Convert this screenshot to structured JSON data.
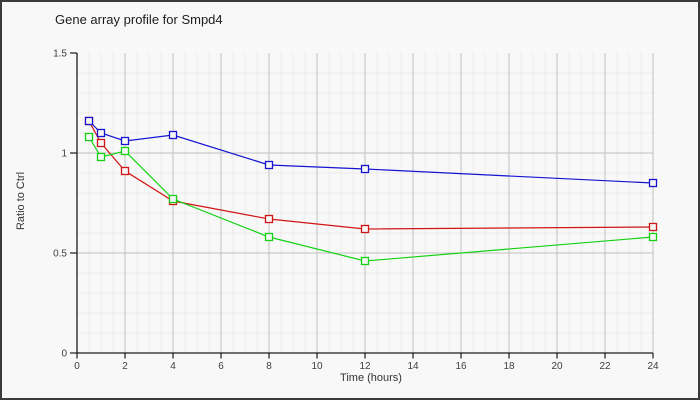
{
  "window": {
    "background": "#f8f8f8",
    "border_color": "#3b3b3b"
  },
  "chart_data": {
    "type": "line",
    "title": "Gene array profile for Smpd4",
    "xlabel": "Time (hours)",
    "ylabel": "Ratio to Ctrl",
    "x": [
      0.5,
      1,
      2,
      4,
      8,
      12,
      24
    ],
    "series": [
      {
        "name": "red",
        "color": "#d21414",
        "values": [
          1.16,
          1.05,
          0.91,
          0.76,
          0.67,
          0.62,
          0.63
        ]
      },
      {
        "name": "green",
        "color": "#14d214",
        "values": [
          1.08,
          0.98,
          1.01,
          0.77,
          0.58,
          0.46,
          0.58
        ]
      },
      {
        "name": "blue",
        "color": "#1414d2",
        "values": [
          1.16,
          1.1,
          1.06,
          1.09,
          0.94,
          0.92,
          0.85
        ]
      }
    ],
    "xlim": [
      0,
      24
    ],
    "ylim": [
      0,
      1.5
    ],
    "x_ticks": [
      0,
      2,
      4,
      6,
      8,
      10,
      12,
      14,
      16,
      18,
      20,
      22,
      24
    ],
    "y_ticks": [
      0,
      0.5,
      1,
      1.5
    ],
    "x_minor_step": 0.5,
    "y_minor_step": 0.1,
    "grid": true,
    "legend": "none",
    "marker": "open-square",
    "colors": {
      "grid_minor": "#ececec",
      "grid_major": "#c0c0c0",
      "axis": "#1c1c1c",
      "tick_text": "#404040",
      "plot_bg": "#f8f8f8"
    }
  }
}
